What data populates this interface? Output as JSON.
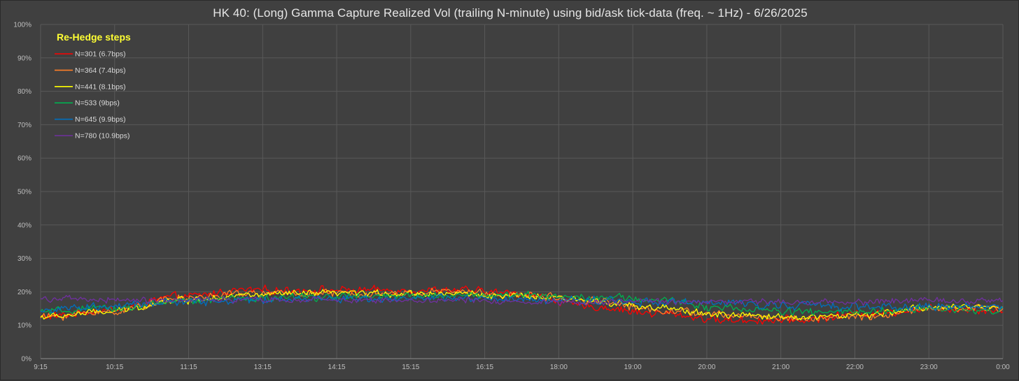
{
  "chart_data": {
    "type": "line",
    "title": "HK 40: (Long) Gamma Capture Realized Vol (trailing N-minute) using bid/ask tick-data (freq. ~ 1Hz) - 6/26/2025",
    "xlabel": "",
    "ylabel": "",
    "x_ticks": [
      "9:15",
      "10:15",
      "11:15",
      "13:15",
      "14:15",
      "15:15",
      "16:15",
      "18:00",
      "19:00",
      "20:00",
      "21:00",
      "22:00",
      "23:00",
      "0:00"
    ],
    "y_ticks": [
      "0%",
      "10%",
      "20%",
      "30%",
      "40%",
      "50%",
      "60%",
      "70%",
      "80%",
      "90%",
      "100%"
    ],
    "ylim": [
      0,
      100
    ],
    "grid": true,
    "legend_title": "Re-Hedge steps",
    "legend_position": "top-left",
    "series": [
      {
        "name": "N=301 (6.7bps)",
        "color": "#ff0000",
        "anchors": [
          12.5,
          14.5,
          18.5,
          20.5,
          20.5,
          20.5,
          20.5,
          19.5,
          15.5,
          13.5,
          11.5,
          11.5,
          13.5,
          15.0,
          14.5
        ]
      },
      {
        "name": "N=364 (7.4bps)",
        "color": "#ff7f27",
        "anchors": [
          12.5,
          14.0,
          18.0,
          19.5,
          19.5,
          19.5,
          20.0,
          19.0,
          17.5,
          14.5,
          13.0,
          12.0,
          12.5,
          15.0,
          15.0
        ]
      },
      {
        "name": "N=441 (8.1bps)",
        "color": "#ffff00",
        "anchors": [
          12.5,
          14.0,
          17.5,
          19.0,
          19.5,
          19.5,
          19.5,
          18.5,
          17.5,
          15.0,
          13.0,
          12.5,
          13.0,
          15.5,
          15.5
        ]
      },
      {
        "name": "N=533 (9bps)",
        "color": "#00b050",
        "anchors": [
          14.0,
          15.0,
          17.0,
          18.0,
          18.5,
          18.5,
          19.0,
          19.0,
          18.5,
          17.5,
          15.0,
          14.0,
          14.0,
          15.0,
          14.5
        ]
      },
      {
        "name": "N=645 (9.9bps)",
        "color": "#0070c0",
        "anchors": [
          14.5,
          15.5,
          17.0,
          17.5,
          18.0,
          18.0,
          18.0,
          17.5,
          17.5,
          17.0,
          16.5,
          16.0,
          15.5,
          15.5,
          15.5
        ]
      },
      {
        "name": "N=780 (10.9bps)",
        "color": "#7030a0",
        "anchors": [
          18.0,
          17.5,
          17.5,
          17.5,
          17.5,
          17.5,
          17.5,
          17.0,
          17.0,
          17.0,
          17.0,
          17.0,
          17.0,
          17.5,
          17.5
        ]
      }
    ],
    "series_noise": [
      1.3,
      1.2,
      1.1,
      1.2,
      1.3,
      1.0
    ]
  }
}
